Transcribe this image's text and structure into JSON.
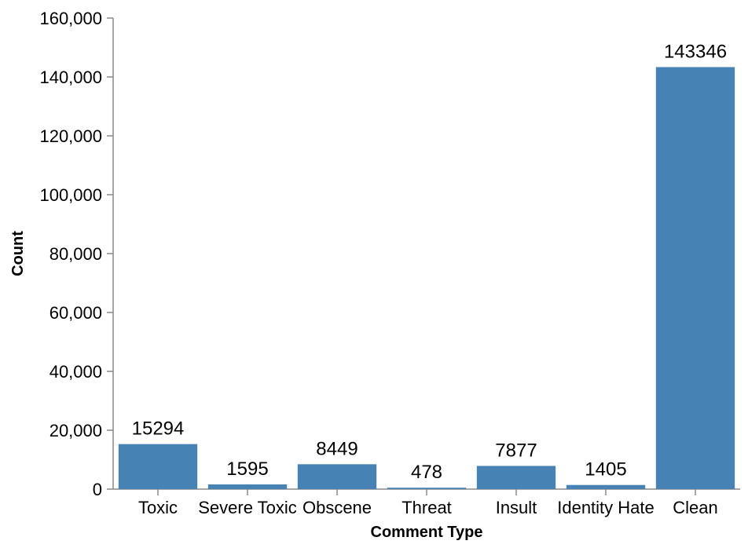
{
  "chart_data": {
    "type": "bar",
    "categories": [
      "Toxic",
      "Severe Toxic",
      "Obscene",
      "Threat",
      "Insult",
      "Identity Hate",
      "Clean"
    ],
    "values": [
      15294,
      1595,
      8449,
      478,
      7877,
      1405,
      143346
    ],
    "data_labels": [
      "15294",
      "1595",
      "8449",
      "478",
      "7877",
      "1405",
      "143346"
    ],
    "title": "",
    "xlabel": "Comment Type",
    "ylabel": "Count",
    "ylim": [
      0,
      160000
    ],
    "yticks": [
      0,
      20000,
      40000,
      60000,
      80000,
      100000,
      120000,
      140000,
      160000
    ],
    "ytick_labels": [
      "0",
      "20,000",
      "40,000",
      "60,000",
      "80,000",
      "100,000",
      "120,000",
      "140,000",
      "160,000"
    ],
    "bar_color": "#4682b4",
    "grid": false,
    "legend": "none"
  }
}
